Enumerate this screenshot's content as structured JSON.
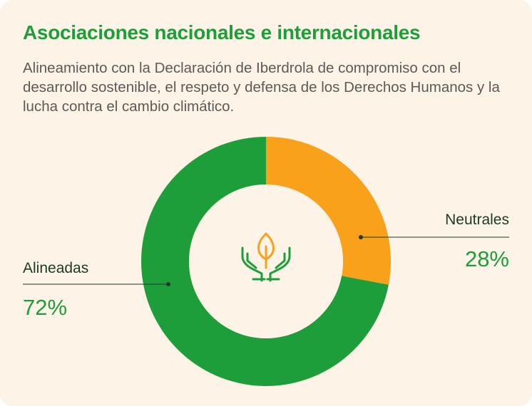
{
  "header": {
    "title": "Asociaciones nacionales e internacionales",
    "subtitle": "Alineamiento con la Declaración de Iberdrola de compromiso con el desarrollo sostenible, el respeto y defensa de los Derechos Humanos y la lucha contra el cambio climático."
  },
  "colors": {
    "background": "#fdf3e6",
    "accent_green": "#1e9e3a",
    "accent_orange": "#f9a11b",
    "leader_line": "#1c3a26"
  },
  "center_icon": "hands-holding-leaf-icon",
  "chart_data": {
    "type": "pie",
    "variant": "donut",
    "title": "",
    "start_angle_deg": 0,
    "direction": "clockwise",
    "slices": [
      {
        "label": "Neutrales",
        "value_text": "28%",
        "value": 28,
        "color": "#f9a11b",
        "label_side": "right"
      },
      {
        "label": "Alineadas",
        "value_text": "72%",
        "value": 72,
        "color": "#1e9e3a",
        "label_side": "left"
      }
    ]
  }
}
